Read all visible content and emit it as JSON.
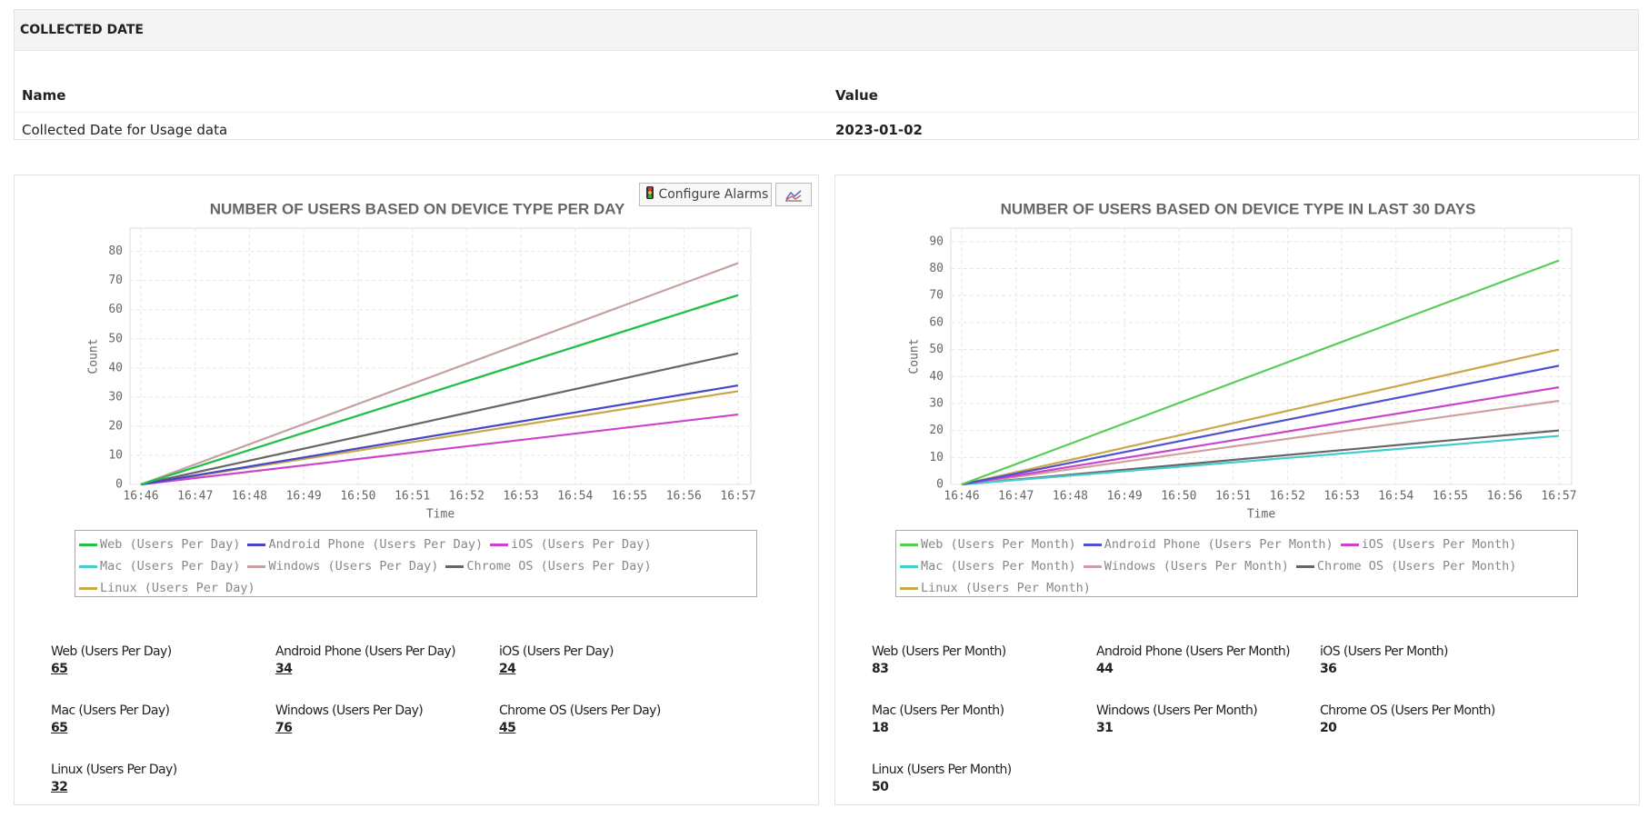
{
  "collected": {
    "title": "COLLECTED DATE",
    "columns": [
      "Name",
      "Value"
    ],
    "rows": [
      [
        "Collected Date for Usage data",
        "2023-01-02"
      ]
    ]
  },
  "buttons": {
    "configure_alarms": "Configure Alarms"
  },
  "chart_data": [
    {
      "type": "line",
      "title": "NUMBER OF USERS BASED ON DEVICE TYPE PER DAY",
      "x_label": "Time",
      "y_label": "Count",
      "x": [
        "16:46",
        "16:57"
      ],
      "xlim": [
        "16:46",
        "16:57"
      ],
      "xticks": [
        "16:46",
        "16:47",
        "16:48",
        "16:49",
        "16:50",
        "16:51",
        "16:52",
        "16:53",
        "16:54",
        "16:55",
        "16:56",
        "16:57"
      ],
      "ylim": [
        0,
        88
      ],
      "yticks": [
        0,
        10,
        20,
        30,
        40,
        50,
        60,
        70,
        80
      ],
      "grid": true,
      "series": [
        {
          "name": "Web (Users Per Day)",
          "color": "#22c043",
          "values": [
            0,
            65
          ]
        },
        {
          "name": "Android Phone (Users Per Day)",
          "color": "#4646c8",
          "values": [
            0,
            34
          ]
        },
        {
          "name": "iOS (Users Per Day)",
          "color": "#cc44cc",
          "values": [
            0,
            24
          ]
        },
        {
          "name": "Mac (Users Per Day)",
          "color": "#44cccc",
          "values": [
            0,
            65
          ]
        },
        {
          "name": "Windows (Users Per Day)",
          "color": "#c8a0a0",
          "values": [
            0,
            76
          ]
        },
        {
          "name": "Chrome OS (Users Per Day)",
          "color": "#666666",
          "values": [
            0,
            45
          ]
        },
        {
          "name": "Linux (Users Per Day)",
          "color": "#c8a848",
          "values": [
            0,
            32
          ]
        }
      ]
    },
    {
      "type": "line",
      "title": "NUMBER OF USERS BASED ON DEVICE TYPE IN LAST 30 DAYS",
      "x_label": "Time",
      "y_label": "Count",
      "x": [
        "16:46",
        "16:57"
      ],
      "xlim": [
        "16:46",
        "16:57"
      ],
      "xticks": [
        "16:46",
        "16:47",
        "16:48",
        "16:49",
        "16:50",
        "16:51",
        "16:52",
        "16:53",
        "16:54",
        "16:55",
        "16:56",
        "16:57"
      ],
      "ylim": [
        0,
        95
      ],
      "yticks": [
        0,
        10,
        20,
        30,
        40,
        50,
        60,
        70,
        80,
        90
      ],
      "grid": true,
      "series": [
        {
          "name": "Web (Users Per Month)",
          "color": "#55cc55",
          "values": [
            0,
            83
          ]
        },
        {
          "name": "Android Phone (Users Per Month)",
          "color": "#5050d0",
          "values": [
            0,
            44
          ]
        },
        {
          "name": "iOS (Users Per Month)",
          "color": "#cc44cc",
          "values": [
            0,
            36
          ]
        },
        {
          "name": "Mac (Users Per Month)",
          "color": "#44cccc",
          "values": [
            0,
            18
          ]
        },
        {
          "name": "Windows (Users Per Month)",
          "color": "#d0a0a0",
          "values": [
            0,
            31
          ]
        },
        {
          "name": "Chrome OS (Users Per Month)",
          "color": "#666666",
          "values": [
            0,
            20
          ]
        },
        {
          "name": "Linux (Users Per Month)",
          "color": "#c8a848",
          "values": [
            0,
            50
          ]
        }
      ]
    }
  ]
}
